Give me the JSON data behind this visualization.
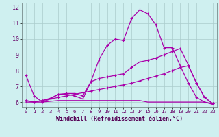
{
  "xlabel": "Windchill (Refroidissement éolien,°C)",
  "bg_color": "#cff0f0",
  "line_color": "#aa00aa",
  "grid_color": "#aacccc",
  "xlim": [
    -0.5,
    23.5
  ],
  "ylim": [
    5.7,
    12.3
  ],
  "yticks": [
    6,
    7,
    8,
    9,
    10,
    11,
    12
  ],
  "xticks": [
    0,
    1,
    2,
    3,
    4,
    5,
    6,
    7,
    8,
    9,
    10,
    11,
    12,
    13,
    14,
    15,
    16,
    17,
    18,
    19,
    20,
    21,
    22,
    23
  ],
  "line1_x": [
    0,
    1,
    2,
    3,
    4,
    5,
    6,
    7,
    8,
    9,
    10,
    11,
    12,
    13,
    14,
    15,
    16,
    17,
    18,
    19,
    20,
    21,
    22,
    23
  ],
  "line1_y": [
    7.7,
    6.4,
    6.0,
    6.2,
    6.5,
    6.5,
    6.4,
    6.2,
    7.3,
    8.7,
    9.6,
    10.0,
    9.9,
    11.3,
    11.85,
    11.6,
    10.9,
    9.45,
    9.45,
    8.3,
    7.2,
    6.3,
    6.0,
    5.9
  ],
  "line2_x": [
    0,
    1,
    2,
    3,
    4,
    5,
    6,
    7,
    8,
    9,
    10,
    11,
    12,
    13,
    14,
    15,
    16,
    17,
    18,
    19,
    20,
    21,
    22,
    23
  ],
  "line2_y": [
    6.1,
    6.0,
    6.1,
    6.25,
    6.5,
    6.55,
    6.55,
    6.4,
    7.3,
    7.5,
    7.6,
    7.7,
    7.8,
    8.2,
    8.55,
    8.65,
    8.8,
    9.0,
    9.2,
    9.4,
    8.35,
    7.2,
    6.3,
    5.9
  ],
  "line3_x": [
    0,
    1,
    2,
    3,
    4,
    5,
    6,
    7,
    8,
    9,
    10,
    11,
    12,
    13,
    14,
    15,
    16,
    17,
    18,
    19,
    20,
    21,
    22,
    23
  ],
  "line3_y": [
    6.1,
    6.0,
    6.1,
    6.2,
    6.3,
    6.4,
    6.5,
    6.6,
    6.7,
    6.8,
    6.9,
    7.0,
    7.1,
    7.2,
    7.35,
    7.5,
    7.65,
    7.8,
    8.0,
    8.2,
    8.3,
    7.2,
    6.3,
    5.9
  ],
  "line4_x": [
    0,
    1,
    2,
    3,
    4,
    5,
    6,
    7,
    8,
    9,
    10,
    11,
    12,
    13,
    14,
    15,
    16,
    17,
    18,
    19,
    20,
    21,
    22,
    23
  ],
  "line4_y": [
    6.0,
    6.0,
    6.0,
    6.05,
    6.1,
    6.1,
    6.1,
    6.1,
    6.1,
    6.1,
    6.1,
    6.1,
    6.1,
    6.1,
    6.1,
    6.0,
    6.0,
    6.0,
    6.0,
    6.0,
    6.0,
    6.0,
    6.0,
    5.85
  ]
}
